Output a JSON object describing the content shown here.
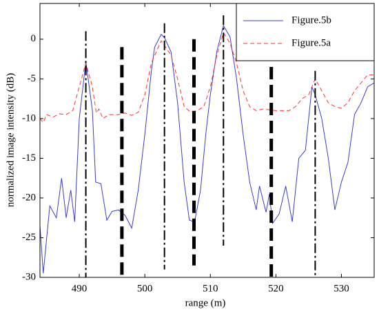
{
  "chart_data": {
    "type": "line",
    "xlabel": "range (m)",
    "ylabel": "normalized image intensity (dB)",
    "xlim": [
      484,
      535
    ],
    "ylim": [
      -30,
      4.5
    ],
    "xticks": [
      490,
      500,
      510,
      520,
      530
    ],
    "yticks": [
      0,
      -5,
      -10,
      -15,
      -20,
      -25,
      -30
    ],
    "legend": "upper right",
    "series": [
      {
        "name": "Figure.5b",
        "color": "#3a3ad0",
        "dash": "solid",
        "x": [
          484,
          484.5,
          485.5,
          486.5,
          487.3,
          488,
          488.7,
          489.3,
          490,
          491,
          492,
          492.5,
          493.3,
          494.2,
          495,
          496,
          497,
          498,
          499,
          500,
          501,
          501.5,
          502.5,
          503,
          504,
          505,
          506,
          506.8,
          507.6,
          508.5,
          509.3,
          510,
          511,
          512,
          513,
          514,
          515,
          516,
          517,
          517.5,
          518.5,
          519,
          519.5,
          520.5,
          521.5,
          522.5,
          523.5,
          524.5,
          525.5,
          526,
          527,
          528,
          529,
          530,
          531,
          532,
          533,
          534,
          535
        ],
        "values": [
          -23.5,
          -29.5,
          -21,
          -22.5,
          -17.5,
          -22.5,
          -19,
          -23,
          -10,
          -2.8,
          -9,
          -18,
          -18.2,
          -22.8,
          -21.7,
          -21.5,
          -22.2,
          -23.8,
          -19,
          -12,
          -4,
          -1,
          0.6,
          0.2,
          -1.6,
          -8,
          -18,
          -22.8,
          -23,
          -19,
          -12,
          -7,
          -1.5,
          1.7,
          0.3,
          -5,
          -12,
          -18,
          -21.5,
          -18.5,
          -21.8,
          -19.5,
          -23.2,
          -22,
          -18.5,
          -23,
          -15,
          -14,
          -6,
          -7,
          -10,
          -15,
          -21.5,
          -18,
          -15.5,
          -9.5,
          -8,
          -6,
          -5.5
        ]
      },
      {
        "name": "Figure.5a",
        "color": "#ff3030",
        "dash": "dashed",
        "x": [
          484,
          484.5,
          485,
          486,
          487,
          488,
          489,
          490,
          491,
          492,
          492.6,
          493,
          493.6,
          494.5,
          496,
          497,
          498,
          499,
          500,
          501,
          502.5,
          503,
          504,
          505,
          506,
          507,
          508,
          509,
          510,
          511,
          512,
          513,
          514,
          515,
          516,
          517,
          518,
          520,
          522,
          523,
          524,
          525,
          526,
          527,
          528,
          529,
          530,
          531,
          532,
          533,
          534,
          535
        ],
        "values": [
          -10,
          -10.5,
          -9.5,
          -9.8,
          -9.4,
          -9.5,
          -9,
          -6,
          -3,
          -6,
          -9.3,
          -8.8,
          -10,
          -9.5,
          -9.5,
          -9.3,
          -9.6,
          -9.2,
          -7,
          -3,
          -0.2,
          -0.8,
          -2,
          -5,
          -8.5,
          -9.2,
          -9,
          -8.5,
          -6,
          -2,
          0.8,
          -0.5,
          -3,
          -6.5,
          -8.5,
          -9,
          -8.8,
          -9,
          -9,
          -8.5,
          -7.5,
          -7,
          -5,
          -6.5,
          -8,
          -8.5,
          -8.7,
          -8,
          -6.5,
          -5.5,
          -4.5,
          -4.5
        ]
      }
    ],
    "markers": [
      {
        "x": 491,
        "y": [
          1,
          -30
        ],
        "weight": "thin"
      },
      {
        "x": 496.5,
        "y": [
          -1,
          -30
        ],
        "weight": "thick"
      },
      {
        "x": 503,
        "y": [
          2,
          -29
        ],
        "weight": "thin"
      },
      {
        "x": 507.5,
        "y": [
          0,
          -28.5
        ],
        "weight": "thick"
      },
      {
        "x": 512,
        "y": [
          3,
          -26
        ],
        "weight": "thin"
      },
      {
        "x": 519.3,
        "y": [
          -3.5,
          -30
        ],
        "weight": "thick"
      },
      {
        "x": 526,
        "y": [
          -4,
          -30
        ],
        "weight": "thin"
      }
    ]
  }
}
